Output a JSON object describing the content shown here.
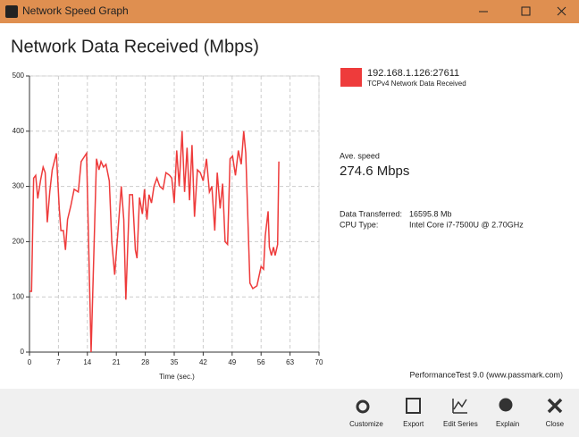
{
  "window": {
    "title": "Network Speed Graph"
  },
  "chart_data": {
    "type": "line",
    "title": "Network Data Received (Mbps)",
    "xlabel": "Time (sec.)",
    "x": [
      0,
      0.5,
      1,
      1.5,
      2,
      2.7,
      3.3,
      3.8,
      4.3,
      4.9,
      5.5,
      6.5,
      7.2,
      7.6,
      8.2,
      8.7,
      9.2,
      10,
      10.8,
      11.8,
      12.5,
      13.8,
      14.9,
      16.2,
      16.8,
      17.3,
      17.9,
      18.5,
      19.3,
      19.9,
      20.6,
      21.5,
      22.2,
      22.8,
      23.3,
      24.2,
      24.9,
      25.6,
      26,
      26.6,
      27.3,
      27.8,
      28.4,
      28.9,
      29.5,
      30.1,
      30.8,
      31.5,
      32.3,
      33,
      33.9,
      34.4,
      35,
      35.6,
      36.2,
      36.9,
      37.5,
      38.1,
      38.7,
      39.3,
      39.9,
      40.6,
      41.3,
      42,
      42.8,
      43.5,
      44.1,
      44.8,
      45.4,
      46.1,
      46.7,
      47.3,
      47.9,
      48.5,
      49.1,
      49.8,
      50.5,
      51.2,
      51.8,
      52.3,
      53.3,
      54,
      55,
      56,
      56.6,
      57,
      57.7,
      58,
      58.5,
      59,
      59.4,
      60,
      60.3
    ],
    "series": [
      {
        "name": "192.168.1.126:27611",
        "description": "TCPv4 Network Data Received",
        "color": "#ee3b3b",
        "values": [
          110,
          110,
          315,
          320,
          278,
          312,
          335,
          325,
          235,
          290,
          330,
          360,
          260,
          220,
          220,
          185,
          240,
          265,
          295,
          290,
          345,
          360,
          0,
          350,
          330,
          345,
          335,
          340,
          310,
          200,
          140,
          230,
          300,
          240,
          95,
          285,
          285,
          185,
          170,
          280,
          250,
          295,
          240,
          285,
          270,
          300,
          315,
          300,
          295,
          325,
          320,
          315,
          270,
          365,
          300,
          400,
          290,
          370,
          275,
          375,
          245,
          330,
          325,
          310,
          350,
          290,
          300,
          220,
          325,
          260,
          305,
          200,
          195,
          350,
          355,
          320,
          365,
          340,
          400,
          360,
          125,
          115,
          120,
          155,
          150,
          210,
          255,
          190,
          175,
          190,
          175,
          195,
          345
        ]
      }
    ],
    "xlim": [
      0,
      70
    ],
    "ylim": [
      0,
      500
    ],
    "xticks": [
      0,
      7,
      14,
      21,
      28,
      35,
      42,
      49,
      56,
      63,
      70
    ],
    "yticks": [
      0,
      100,
      200,
      300,
      400,
      500
    ],
    "grid": true
  },
  "stats": {
    "ave_label": "Ave. speed",
    "ave_value": "274.6 Mbps",
    "rows": [
      [
        "Data Transferred:",
        "16595.8 Mb"
      ],
      [
        "CPU Type:",
        "Intel Core i7-7500U @ 2.70GHz"
      ]
    ]
  },
  "footer": "PerformanceTest 9.0 (www.passmark.com)",
  "toolbar": [
    "Customize",
    "Export",
    "Edit Series",
    "Explain",
    "Close"
  ]
}
